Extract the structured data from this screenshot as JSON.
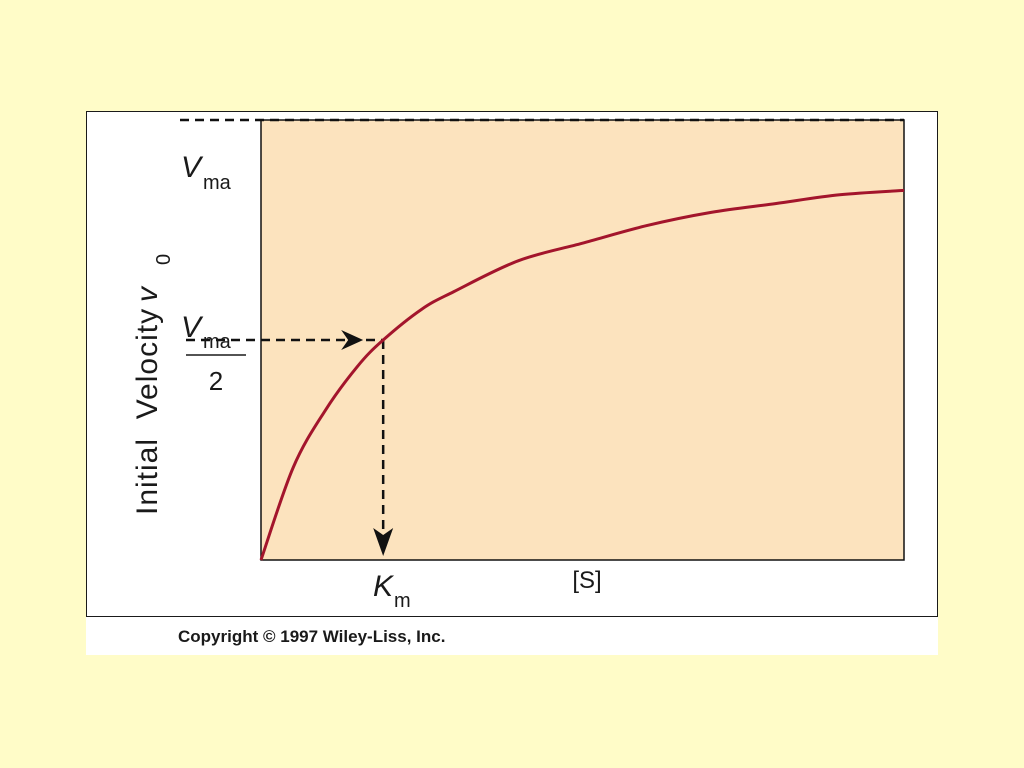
{
  "colors": {
    "page_background": "#FFFCC8",
    "plot_background": "#FCE3BE",
    "curve": "#A3152C",
    "guide": "#111111"
  },
  "copyright": "Copyright © 1997 Wiley-Liss, Inc.",
  "chart_data": {
    "type": "line",
    "title": "",
    "xlabel": "[S]",
    "ylabel": {
      "text": "Initial  Velocity",
      "symbol": "v",
      "subscript": "0"
    },
    "grid": false,
    "legend": "none",
    "xlim": [
      0,
      10
    ],
    "ylim": [
      0,
      1.0
    ],
    "vmax": 1.0,
    "km": 1.9,
    "series": [
      {
        "x": [
          0,
          0.5,
          1,
          1.5,
          1.9,
          2.5,
          3,
          4,
          5,
          6,
          7,
          8,
          9,
          10
        ],
        "y": [
          0,
          0.21,
          0.34,
          0.44,
          0.5,
          0.57,
          0.61,
          0.68,
          0.72,
          0.76,
          0.79,
          0.81,
          0.83,
          0.84
        ]
      }
    ],
    "annotations": {
      "vmax_label": {
        "italic": "V",
        "subscript": "ma"
      },
      "half_vmax_label": {
        "italic": "V",
        "subscript": "ma",
        "denominator": "2"
      },
      "km_label": {
        "italic": "K",
        "subscript": "m"
      }
    }
  }
}
